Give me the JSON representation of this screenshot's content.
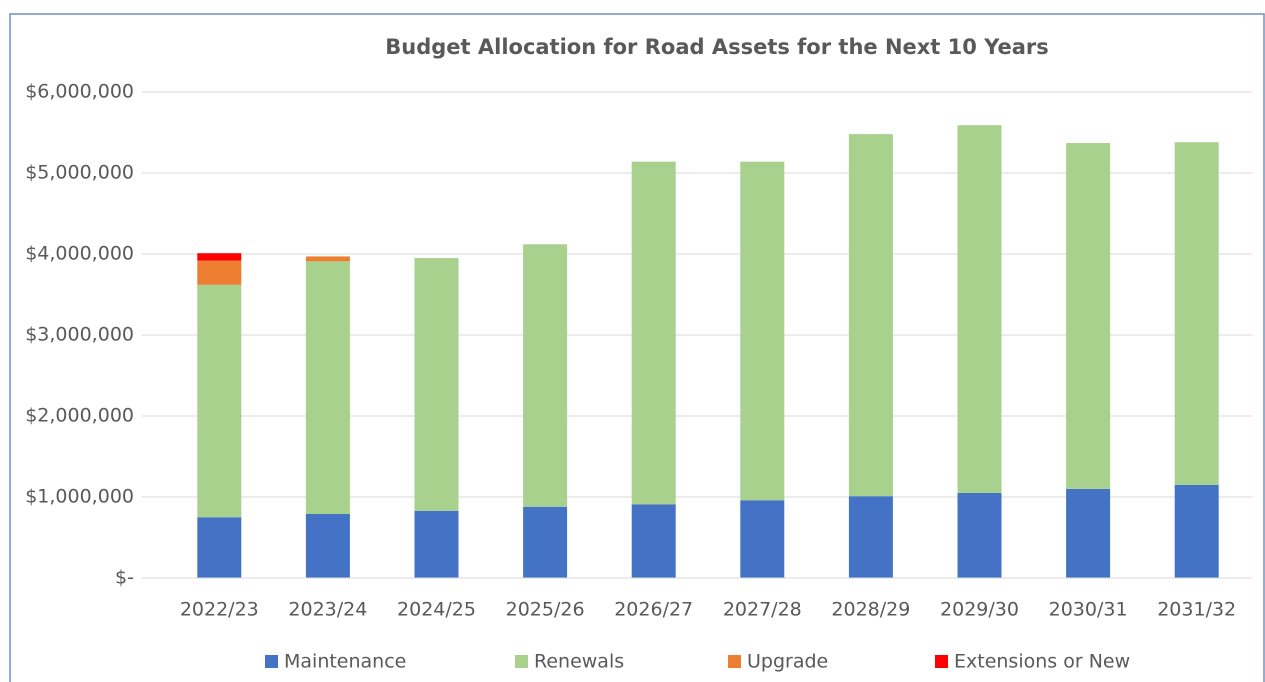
{
  "chart_data": {
    "type": "stacked_bar",
    "title": "Budget Allocation for Road Assets for the Next 10 Years",
    "categories": [
      "2022/23",
      "2023/24",
      "2024/25",
      "2025/26",
      "2026/27",
      "2027/28",
      "2028/29",
      "2029/30",
      "2030/31",
      "2031/32"
    ],
    "series": [
      {
        "name": "Maintenance",
        "color": "#4472c4",
        "values": [
          750000,
          790000,
          830000,
          880000,
          910000,
          960000,
          1010000,
          1050000,
          1100000,
          1150000
        ]
      },
      {
        "name": "Renewals",
        "color": "#a9d18e",
        "values": [
          2870000,
          3120000,
          3120000,
          3240000,
          4230000,
          4180000,
          4470000,
          4540000,
          4270000,
          4230000
        ]
      },
      {
        "name": "Upgrade",
        "color": "#ed7d31",
        "values": [
          300000,
          60000,
          0,
          0,
          0,
          0,
          0,
          0,
          0,
          0
        ]
      },
      {
        "name": "Extensions or New",
        "color": "#ff0000",
        "values": [
          90000,
          0,
          0,
          0,
          0,
          0,
          0,
          0,
          0,
          0
        ]
      }
    ],
    "ylim": [
      0,
      6000000
    ],
    "yticks": [
      {
        "value": 0,
        "label": "$-"
      },
      {
        "value": 1000000,
        "label": "$1,000,000"
      },
      {
        "value": 2000000,
        "label": "$2,000,000"
      },
      {
        "value": 3000000,
        "label": "$3,000,000"
      },
      {
        "value": 4000000,
        "label": "$4,000,000"
      },
      {
        "value": 5000000,
        "label": "$5,000,000"
      },
      {
        "value": 6000000,
        "label": "$6,000,000"
      }
    ],
    "grid": true,
    "legend": "bottom"
  }
}
